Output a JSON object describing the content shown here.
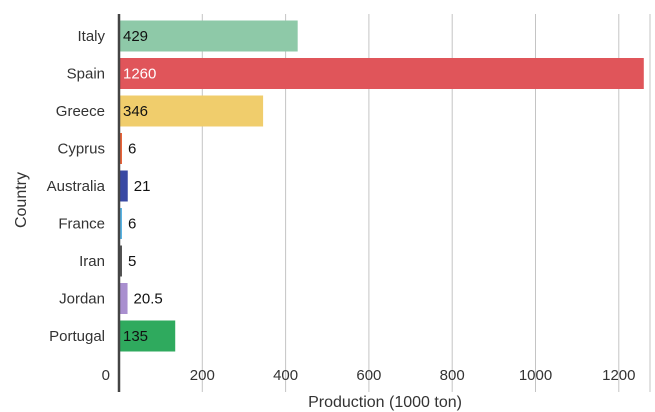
{
  "chart_data": {
    "type": "bar",
    "orientation": "horizontal",
    "categories": [
      "Italy",
      "Spain",
      "Greece",
      "Cyprus",
      "Australia",
      "France",
      "Iran",
      "Jordan",
      "Portugal"
    ],
    "values": [
      429,
      1260,
      346,
      6,
      21,
      6,
      5,
      20.5,
      135
    ],
    "value_labels": [
      "429",
      "1260",
      "346",
      "6",
      "21",
      "6",
      "5",
      "20.5",
      "135"
    ],
    "colors": [
      "#8ec9a8",
      "#e0555a",
      "#f0cd6c",
      "#e8643a",
      "#3949a3",
      "#5ab3e2",
      "#555555",
      "#a98fcf",
      "#2faa5e"
    ],
    "label_colors": [
      "#111111",
      "#ffffff",
      "#111111",
      "#111111",
      "#111111",
      "#111111",
      "#111111",
      "#111111",
      "#111111"
    ],
    "xlabel": "Production (1000 ton)",
    "ylabel": "Country",
    "xlim": [
      0,
      1260
    ],
    "xticks": [
      0,
      200,
      400,
      600,
      800,
      1000,
      1200
    ],
    "xtick_labels": [
      "0",
      "200",
      "400",
      "600",
      "800",
      "1000",
      "1200"
    ],
    "grid": "vertical"
  }
}
